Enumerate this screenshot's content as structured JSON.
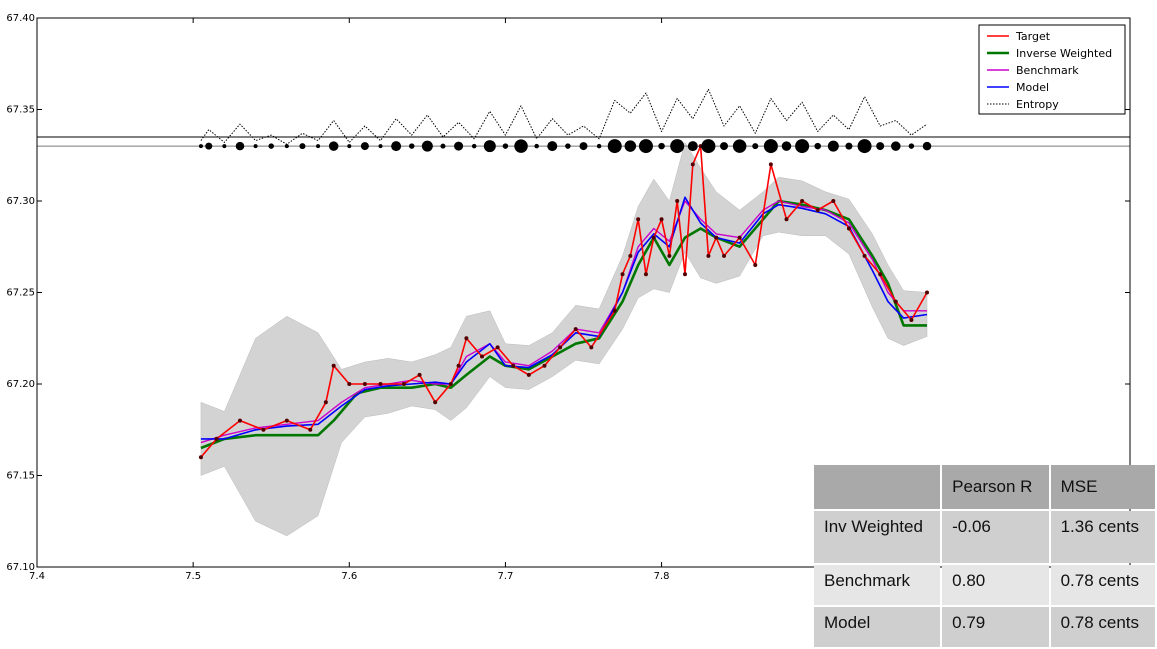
{
  "chart_data": {
    "type": "line",
    "title": "",
    "xlabel": "",
    "ylabel": "",
    "xlim": [
      7.4,
      8.1
    ],
    "ylim": [
      67.1,
      67.4
    ],
    "x_ticks": [
      "7.4",
      "7.5",
      "7.6",
      "7.7",
      "7.8"
    ],
    "y_ticks": [
      "67.10",
      "67.15",
      "67.20",
      "67.25",
      "67.30",
      "67.35",
      "67.40"
    ],
    "legend_position": "top-right",
    "grid": false,
    "reference_lines": [
      67.335,
      67.33
    ],
    "colors": {
      "Target": "#ff0000",
      "Inverse Weighted": "#007700",
      "Benchmark": "#cc00cc",
      "Model": "#0000ff",
      "Entropy": "#000000"
    },
    "series": [
      {
        "name": "Target",
        "x": [
          7.505,
          7.515,
          7.53,
          7.545,
          7.56,
          7.575,
          7.585,
          7.59,
          7.6,
          7.61,
          7.62,
          7.635,
          7.645,
          7.655,
          7.665,
          7.67,
          7.675,
          7.685,
          7.695,
          7.705,
          7.715,
          7.725,
          7.735,
          7.745,
          7.755,
          7.77,
          7.775,
          7.78,
          7.785,
          7.79,
          7.795,
          7.8,
          7.805,
          7.81,
          7.815,
          7.82,
          7.825,
          7.83,
          7.835,
          7.84,
          7.85,
          7.86,
          7.87,
          7.88,
          7.89,
          7.9,
          7.91,
          7.92,
          7.93,
          7.94,
          7.95,
          7.96,
          7.97
        ],
        "y": [
          67.16,
          67.17,
          67.18,
          67.175,
          67.18,
          67.175,
          67.19,
          67.21,
          67.2,
          67.2,
          67.2,
          67.2,
          67.205,
          67.19,
          67.2,
          67.21,
          67.225,
          67.215,
          67.22,
          67.21,
          67.205,
          67.21,
          67.22,
          67.23,
          67.22,
          67.24,
          67.26,
          67.27,
          67.29,
          67.26,
          67.28,
          67.29,
          67.27,
          67.3,
          67.26,
          67.32,
          67.33,
          67.27,
          67.28,
          67.27,
          67.28,
          67.265,
          67.32,
          67.29,
          67.3,
          67.295,
          67.3,
          67.285,
          67.27,
          67.26,
          67.245,
          67.235,
          67.25
        ]
      },
      {
        "name": "Inverse Weighted",
        "x": [
          7.505,
          7.52,
          7.54,
          7.56,
          7.58,
          7.59,
          7.605,
          7.62,
          7.64,
          7.655,
          7.665,
          7.675,
          7.69,
          7.7,
          7.715,
          7.73,
          7.745,
          7.76,
          7.775,
          7.785,
          7.795,
          7.805,
          7.815,
          7.825,
          7.835,
          7.85,
          7.865,
          7.875,
          7.89,
          7.905,
          7.92,
          7.935,
          7.945,
          7.955,
          7.97
        ],
        "y": [
          67.165,
          67.17,
          67.172,
          67.172,
          67.172,
          67.18,
          67.195,
          67.198,
          67.198,
          67.2,
          67.198,
          67.205,
          67.215,
          67.21,
          67.208,
          67.215,
          67.222,
          67.225,
          67.245,
          67.265,
          67.28,
          67.265,
          67.28,
          67.285,
          67.28,
          67.275,
          67.29,
          67.3,
          67.298,
          67.295,
          67.29,
          67.27,
          67.255,
          67.232,
          67.232
        ]
      },
      {
        "name": "Benchmark",
        "x": [
          7.505,
          7.52,
          7.54,
          7.56,
          7.58,
          7.595,
          7.61,
          7.625,
          7.64,
          7.655,
          7.665,
          7.675,
          7.69,
          7.7,
          7.715,
          7.73,
          7.745,
          7.76,
          7.775,
          7.785,
          7.795,
          7.805,
          7.815,
          7.825,
          7.835,
          7.85,
          7.865,
          7.875,
          7.89,
          7.905,
          7.92,
          7.935,
          7.945,
          7.955,
          7.97
        ],
        "y": [
          67.168,
          67.172,
          67.176,
          67.178,
          67.18,
          67.19,
          67.198,
          67.2,
          67.202,
          67.2,
          67.2,
          67.215,
          67.222,
          67.212,
          67.21,
          67.218,
          67.23,
          67.228,
          67.25,
          67.275,
          67.285,
          67.278,
          67.3,
          67.29,
          67.282,
          67.28,
          67.295,
          67.3,
          67.297,
          67.295,
          67.288,
          67.268,
          67.25,
          67.24,
          67.24
        ]
      },
      {
        "name": "Model",
        "x": [
          7.505,
          7.52,
          7.54,
          7.56,
          7.58,
          7.595,
          7.61,
          7.625,
          7.64,
          7.655,
          7.665,
          7.675,
          7.69,
          7.7,
          7.715,
          7.73,
          7.745,
          7.76,
          7.775,
          7.785,
          7.795,
          7.805,
          7.815,
          7.825,
          7.835,
          7.85,
          7.865,
          7.875,
          7.89,
          7.905,
          7.92,
          7.935,
          7.945,
          7.955,
          7.97
        ],
        "y": [
          67.17,
          67.17,
          67.175,
          67.177,
          67.178,
          67.188,
          67.197,
          67.199,
          67.2,
          67.201,
          67.2,
          67.212,
          67.222,
          67.21,
          67.209,
          67.216,
          67.228,
          67.226,
          67.25,
          67.272,
          67.282,
          67.275,
          67.302,
          67.288,
          67.28,
          67.277,
          67.293,
          67.298,
          67.296,
          67.293,
          67.286,
          67.262,
          67.245,
          67.236,
          67.238
        ]
      },
      {
        "name": "Entropy",
        "x": [
          7.505,
          7.51,
          7.52,
          7.53,
          7.54,
          7.55,
          7.56,
          7.57,
          7.58,
          7.59,
          7.6,
          7.61,
          7.62,
          7.63,
          7.64,
          7.65,
          7.66,
          7.67,
          7.68,
          7.69,
          7.7,
          7.71,
          7.72,
          7.73,
          7.74,
          7.75,
          7.76,
          7.77,
          7.78,
          7.79,
          7.8,
          7.81,
          7.82,
          7.83,
          7.84,
          7.85,
          7.86,
          7.87,
          7.88,
          7.89,
          7.9,
          7.91,
          7.92,
          7.93,
          7.94,
          7.95,
          7.96,
          7.97
        ],
        "y": [
          67.333,
          67.339,
          67.332,
          67.342,
          67.333,
          67.336,
          67.331,
          67.337,
          67.333,
          67.344,
          67.332,
          67.341,
          67.333,
          67.345,
          67.336,
          67.347,
          67.335,
          67.343,
          67.334,
          67.349,
          67.336,
          67.352,
          67.334,
          67.345,
          67.336,
          67.341,
          67.334,
          67.355,
          67.348,
          67.359,
          67.338,
          67.356,
          67.345,
          67.361,
          67.341,
          67.352,
          67.337,
          67.356,
          67.344,
          67.354,
          67.338,
          67.347,
          67.339,
          67.357,
          67.341,
          67.344,
          67.336,
          67.342
        ]
      }
    ]
  },
  "table": {
    "headers": [
      "",
      "Pearson R",
      "MSE"
    ],
    "rows": [
      {
        "label": "Inv Weighted",
        "pearson": "-0.06",
        "mse": "1.36 cents"
      },
      {
        "label": "Benchmark",
        "pearson": "0.80",
        "mse": "0.78 cents"
      },
      {
        "label": "Model",
        "pearson": "0.79",
        "mse": "0.78 cents"
      }
    ]
  }
}
